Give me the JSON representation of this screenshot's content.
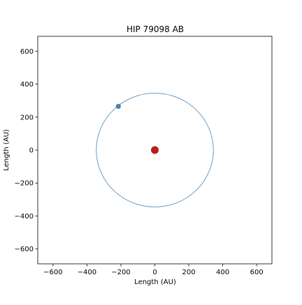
{
  "chart_data": {
    "type": "scatter",
    "title": "HIP 79098 AB",
    "xlabel": "Length (AU)",
    "ylabel": "Length (AU)",
    "xlim": [
      -690,
      690
    ],
    "ylim": [
      -690,
      690
    ],
    "xticks": [
      -600,
      -400,
      -200,
      0,
      200,
      400,
      600
    ],
    "yticks": [
      -600,
      -400,
      -200,
      0,
      200,
      400,
      600
    ],
    "xtick_labels": [
      "−600",
      "−400",
      "−200",
      "0",
      "200",
      "400",
      "600"
    ],
    "ytick_labels": [
      "−600",
      "−400",
      "−200",
      "0",
      "200",
      "400",
      "600"
    ],
    "grid": false,
    "orbit": {
      "center": [
        0,
        0
      ],
      "radius": 345,
      "color": "#4682b4"
    },
    "points": [
      {
        "role": "primary",
        "x": 0,
        "y": 0,
        "color": "#b22222"
      },
      {
        "role": "companion",
        "x": -215,
        "y": 265,
        "color": "#4682b4"
      }
    ]
  }
}
